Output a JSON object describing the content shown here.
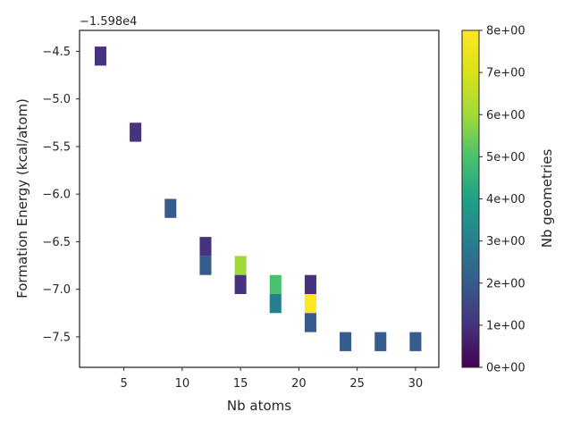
{
  "chart_data": {
    "type": "heatmap",
    "title": "",
    "xlabel": "Nb atoms",
    "ylabel": "Formation Energy (kcal/atom)",
    "y_offset_text": "−1.598e4",
    "xlim": [
      1.2,
      32.0
    ],
    "ylim": [
      -7.82,
      -4.28
    ],
    "x_ticks": [
      5,
      10,
      15,
      20,
      25,
      30
    ],
    "x_tick_labels": [
      "5",
      "10",
      "15",
      "20",
      "25",
      "30"
    ],
    "y_ticks": [
      -4.5,
      -5.0,
      -5.5,
      -6.0,
      -6.5,
      -7.0,
      -7.5
    ],
    "y_tick_labels": [
      "−4.5",
      "−5.0",
      "−5.5",
      "−6.0",
      "−6.5",
      "−7.0",
      "−7.5"
    ],
    "cell_width": 1.0,
    "cell_height": 0.2,
    "cells": [
      {
        "x": 3,
        "y": -4.55,
        "count": 1
      },
      {
        "x": 6,
        "y": -5.35,
        "count": 1
      },
      {
        "x": 9,
        "y": -6.15,
        "count": 2
      },
      {
        "x": 12,
        "y": -6.55,
        "count": 1
      },
      {
        "x": 12,
        "y": -6.75,
        "count": 2
      },
      {
        "x": 15,
        "y": -6.75,
        "count": 6
      },
      {
        "x": 15,
        "y": -6.95,
        "count": 1
      },
      {
        "x": 18,
        "y": -6.95,
        "count": 5
      },
      {
        "x": 18,
        "y": -7.15,
        "count": 3
      },
      {
        "x": 21,
        "y": -6.95,
        "count": 1
      },
      {
        "x": 21,
        "y": -7.15,
        "count": 8
      },
      {
        "x": 21,
        "y": -7.35,
        "count": 2
      },
      {
        "x": 24,
        "y": -7.55,
        "count": 2
      },
      {
        "x": 27,
        "y": -7.55,
        "count": 2
      },
      {
        "x": 30,
        "y": -7.55,
        "count": 2
      }
    ],
    "grid": false,
    "colorbar": {
      "label": "Nb geometries",
      "colormap": "viridis",
      "range": [
        0,
        8
      ],
      "ticks": [
        0,
        1,
        2,
        3,
        4,
        5,
        6,
        7,
        8
      ],
      "tick_labels": [
        "0e+00",
        "1e+00",
        "2e+00",
        "3e+00",
        "4e+00",
        "5e+00",
        "6e+00",
        "7e+00",
        "8e+00"
      ]
    }
  }
}
